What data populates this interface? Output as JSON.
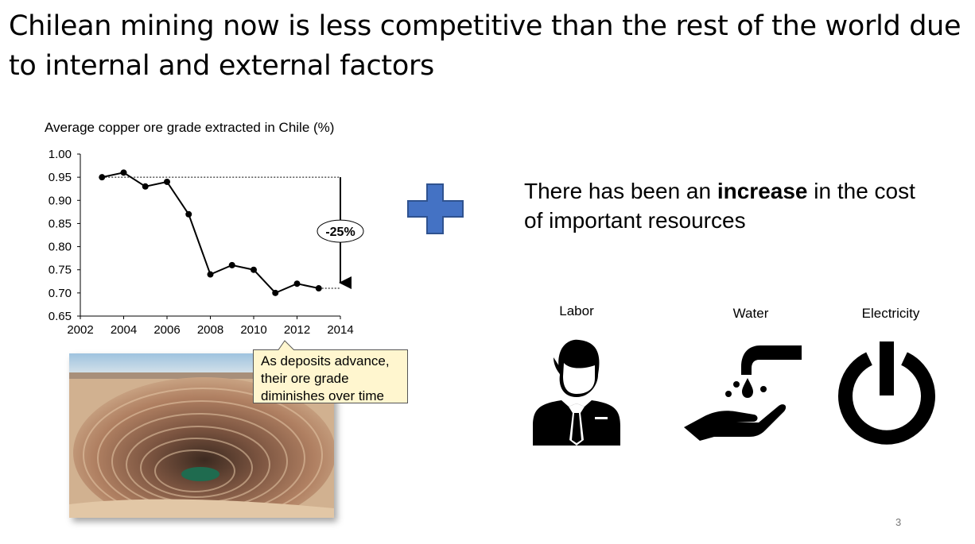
{
  "slide": {
    "title": "Chilean mining now is less competitive than the rest of the world due to internal and external factors",
    "page_number": "3"
  },
  "chart_data": {
    "type": "line",
    "title": "Average copper ore grade extracted in Chile (%)",
    "xlabel": "",
    "ylabel": "",
    "x": [
      2003,
      2004,
      2005,
      2006,
      2007,
      2008,
      2009,
      2010,
      2011,
      2012,
      2013
    ],
    "values": [
      0.95,
      0.96,
      0.93,
      0.94,
      0.87,
      0.74,
      0.76,
      0.75,
      0.7,
      0.72,
      0.71
    ],
    "xlim": [
      2002,
      2014
    ],
    "ylim": [
      0.65,
      1.0
    ],
    "x_ticks": [
      "2002",
      "2004",
      "2006",
      "2008",
      "2010",
      "2012",
      "2014"
    ],
    "y_ticks": [
      "1.00",
      "0.95",
      "0.90",
      "0.85",
      "0.80",
      "0.75",
      "0.70",
      "0.65"
    ],
    "grid": false,
    "annotation": {
      "label": "-25%",
      "from_value": 0.95,
      "to_value": 0.71
    }
  },
  "callout": {
    "text": "As deposits advance, their ore grade diminishes over time"
  },
  "photo": {
    "description_icon": "open-pit-mine-photo"
  },
  "right_panel": {
    "headline_pre": "There has been an ",
    "headline_bold": "increase",
    "headline_post": " in the cost of important resources",
    "plus_color": "#4472c4",
    "resources": [
      {
        "label": "Labor",
        "icon": "businessman-icon"
      },
      {
        "label": "Water",
        "icon": "water-tap-hand-icon"
      },
      {
        "label": "Electricity",
        "icon": "power-icon"
      }
    ]
  }
}
